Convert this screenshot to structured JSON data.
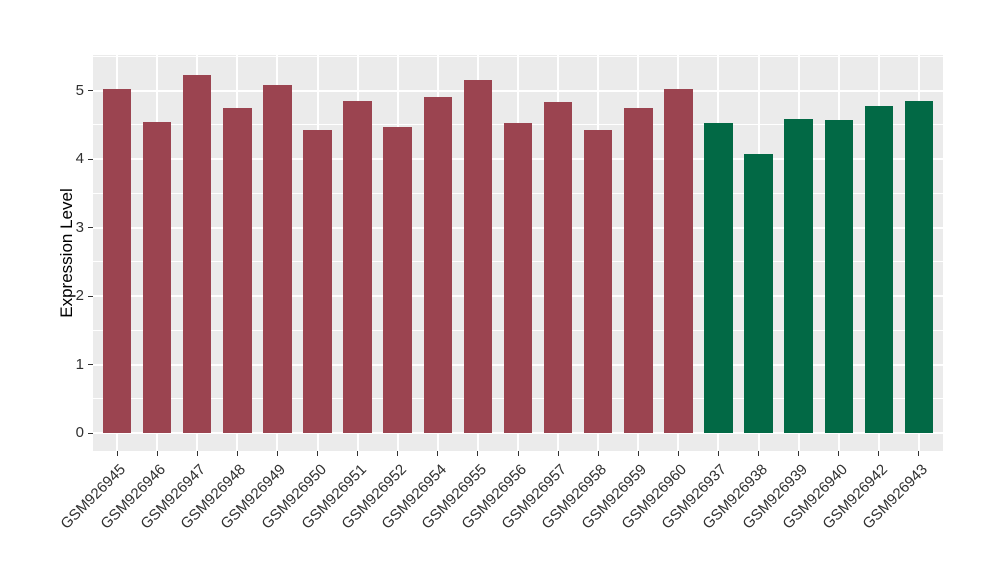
{
  "chart_data": {
    "type": "bar",
    "title": "",
    "xlabel": "",
    "ylabel": "Expression Level",
    "ylim": [
      0,
      5.52
    ],
    "yticks": [
      0,
      1,
      2,
      3,
      4,
      5
    ],
    "legend_position": "none",
    "grid": "white major+minor horizontal lines and white vertical lines at category centers on gray panel",
    "panel_background": "#EBEBEB",
    "grid_color": "#FFFFFF",
    "tick_color": "#333333",
    "categories": [
      "GSM926945",
      "GSM926946",
      "GSM926947",
      "GSM926948",
      "GSM926949",
      "GSM926950",
      "GSM926951",
      "GSM926952",
      "GSM926954",
      "GSM926955",
      "GSM926956",
      "GSM926957",
      "GSM926958",
      "GSM926959",
      "GSM926960",
      "GSM926937",
      "GSM926938",
      "GSM926939",
      "GSM926940",
      "GSM926942",
      "GSM926943"
    ],
    "values": [
      5.02,
      4.54,
      5.23,
      4.74,
      5.08,
      4.42,
      4.85,
      4.47,
      4.9,
      5.15,
      4.53,
      4.83,
      4.43,
      4.74,
      5.02,
      4.52,
      4.08,
      4.59,
      4.57,
      4.77,
      4.84
    ],
    "groups": [
      "maroon",
      "maroon",
      "maroon",
      "maroon",
      "maroon",
      "maroon",
      "maroon",
      "maroon",
      "maroon",
      "maroon",
      "maroon",
      "maroon",
      "maroon",
      "maroon",
      "maroon",
      "green",
      "green",
      "green",
      "green",
      "green",
      "green"
    ],
    "group_colors": {
      "maroon": "#9B4450",
      "green": "#026945"
    }
  }
}
